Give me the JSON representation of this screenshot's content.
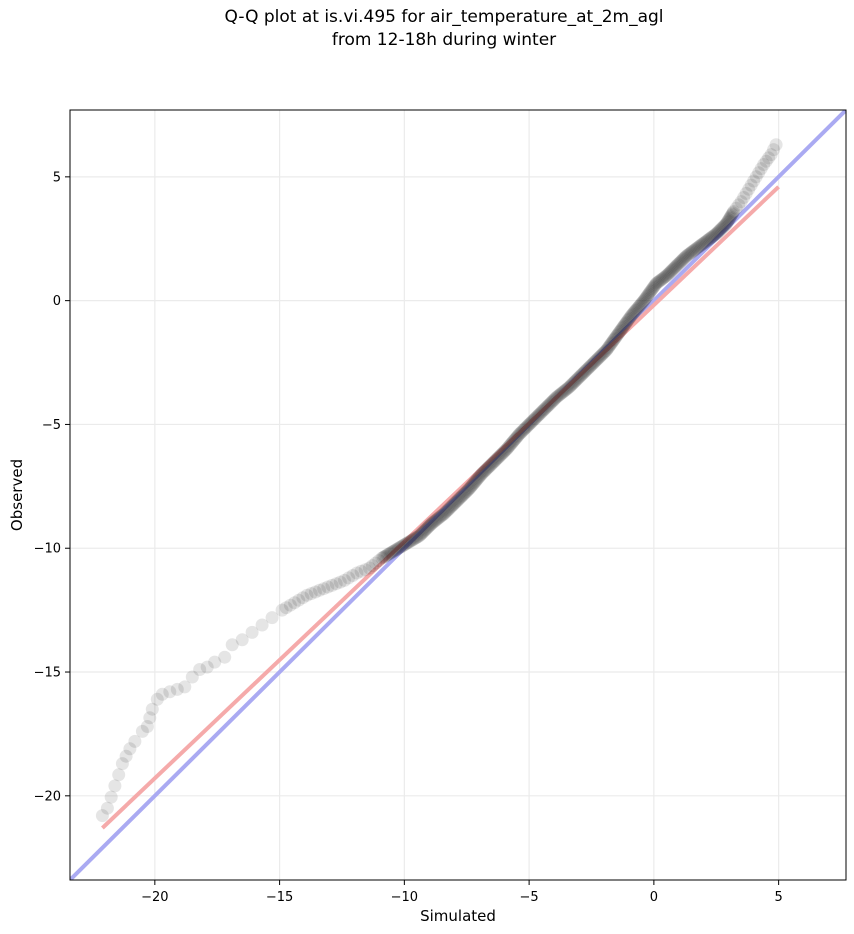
{
  "chart_data": {
    "type": "scatter",
    "title": "Q-Q plot at is.vi.495 for air_temperature_at_2m_agl",
    "subtitle": "from 12-18h during winter",
    "xlabel": "Simulated",
    "ylabel": "Observed",
    "xlim": [
      -23.4,
      7.7
    ],
    "ylim": [
      -23.4,
      7.7
    ],
    "xticks": [
      -20,
      -15,
      -10,
      -5,
      0,
      5
    ],
    "yticks": [
      -20,
      -15,
      -10,
      -5,
      0,
      5
    ],
    "xtick_labels": [
      "−20",
      "−15",
      "−10",
      "−5",
      "0",
      "5"
    ],
    "ytick_labels": [
      "−20",
      "−15",
      "−10",
      "−5",
      "0",
      "5"
    ],
    "grid": true,
    "colors": {
      "identity_line": "#aaaaf2",
      "fit_line": "#f5aaaa",
      "points": "#000000"
    },
    "lines": [
      {
        "role": "identity",
        "x": [
          -23.4,
          7.7
        ],
        "y": [
          -23.4,
          7.7
        ]
      },
      {
        "role": "fit",
        "x": [
          -22.1,
          5.0
        ],
        "y": [
          -21.3,
          4.6
        ]
      }
    ],
    "points": {
      "x": [
        -22.1,
        -21.9,
        -21.3,
        -21.0,
        -20.8,
        -20.5,
        -20.3,
        -20.1,
        -19.9,
        -19.7,
        -19.4,
        -18.8,
        -18.5,
        -18.2,
        -17.9,
        -17.6,
        -17.2,
        -16.9,
        -16.5,
        -16.1,
        -15.7,
        -15.3,
        -14.9,
        -14.4,
        -13.9,
        -13.4,
        -12.9,
        -12.4,
        -11.9,
        -11.4,
        -10.9,
        -10.4,
        -9.9,
        -9.4,
        -8.9,
        -8.4,
        -7.9,
        -7.4,
        -6.9,
        -6.4,
        -5.9,
        -5.4,
        -4.9,
        -4.4,
        -3.9,
        -3.4,
        -2.9,
        -2.4,
        -1.9,
        -1.4,
        -0.9,
        -0.4,
        0.1,
        0.5,
        0.9,
        1.3,
        1.7,
        2.1,
        2.5,
        2.9,
        3.2,
        3.5,
        3.8,
        4.1,
        4.4,
        4.7,
        4.9
      ],
      "y": [
        -20.8,
        -20.5,
        -18.7,
        -18.1,
        -17.8,
        -17.4,
        -17.2,
        -16.5,
        -16.1,
        -15.9,
        -15.8,
        -15.6,
        -15.2,
        -14.9,
        -14.8,
        -14.6,
        -14.4,
        -13.9,
        -13.7,
        -13.4,
        -13.1,
        -12.8,
        -12.5,
        -12.2,
        -11.9,
        -11.7,
        -11.5,
        -11.3,
        -11.0,
        -10.8,
        -10.4,
        -10.1,
        -9.8,
        -9.5,
        -9.0,
        -8.6,
        -8.1,
        -7.6,
        -7.0,
        -6.5,
        -6.0,
        -5.4,
        -4.9,
        -4.4,
        -3.9,
        -3.5,
        -3.0,
        -2.5,
        -2.0,
        -1.3,
        -0.6,
        0.0,
        0.7,
        1.0,
        1.4,
        1.8,
        2.1,
        2.4,
        2.7,
        3.1,
        3.6,
        4.0,
        4.5,
        5.0,
        5.5,
        5.9,
        6.3
      ]
    }
  }
}
